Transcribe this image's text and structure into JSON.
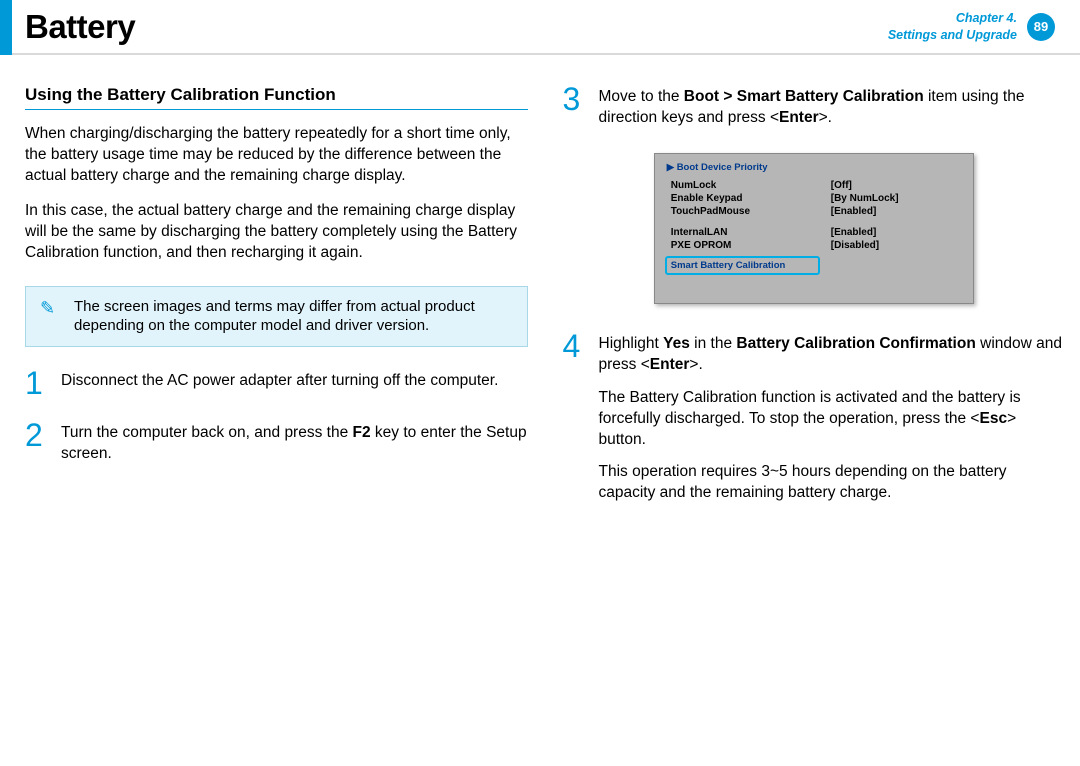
{
  "header": {
    "title": "Battery",
    "chapter_line1": "Chapter 4.",
    "chapter_line2": "Settings and Upgrade",
    "page_num": "89"
  },
  "left": {
    "heading": "Using the Battery Calibration Function",
    "p1": "When charging/discharging the battery repeatedly for a short time only, the battery usage time may be reduced by the difference between the actual battery charge and the remaining charge display.",
    "p2": "In this case, the actual battery charge and the remaining charge display will be the same by discharging the battery completely using the Battery Calibration function, and then recharging it again.",
    "note": "The screen images and terms may differ from actual product depending on the computer model and driver version."
  },
  "steps": {
    "s1_num": "1",
    "s1_text": "Disconnect the AC power adapter after turning off the computer.",
    "s2_num": "2",
    "s2_pre": "Turn the computer back on, and press the ",
    "s2_key": "F2",
    "s2_post": " key to enter the Setup screen.",
    "s3_num": "3",
    "s3_pre": "Move to the ",
    "s3_path": "Boot > Smart Battery Calibration",
    "s3_mid": " item using the direction keys and press <",
    "s3_enter": "Enter",
    "s3_post": ">.",
    "s4_num": "4",
    "s4_l1_pre": "Highlight ",
    "s4_l1_yes": "Yes",
    "s4_l1_mid": " in the ",
    "s4_l1_win": "Battery Calibration Confirmation",
    "s4_l1_mid2": " window and press <",
    "s4_l1_enter": "Enter",
    "s4_l1_post": ">.",
    "s4_p2_pre": "The Battery Calibration function is activated and the battery is forcefully discharged. To stop the operation, press the <",
    "s4_p2_esc": "Esc",
    "s4_p2_post": "> button.",
    "s4_p3": "This operation requires 3~5 hours depending on the battery capacity and the remaining battery charge."
  },
  "bios": {
    "head": "▶ Boot Device Priority",
    "rows": [
      {
        "k": "NumLock",
        "v": "[Off]"
      },
      {
        "k": "Enable Keypad",
        "v": "[By NumLock]"
      },
      {
        "k": "TouchPadMouse",
        "v": "[Enabled]"
      }
    ],
    "rows2": [
      {
        "k": "InternalLAN",
        "v": "[Enabled]"
      },
      {
        "k": "PXE OPROM",
        "v": "[Disabled]"
      }
    ],
    "highlight": "Smart Battery Calibration",
    "colors": {
      "panel_bg": "#b6b6b6",
      "highlight_border": "#00aee6",
      "head_color": "#003a8c"
    }
  },
  "colors": {
    "accent": "#0099d8",
    "note_bg": "#e2f4fb",
    "note_border": "#a8d8e8"
  }
}
